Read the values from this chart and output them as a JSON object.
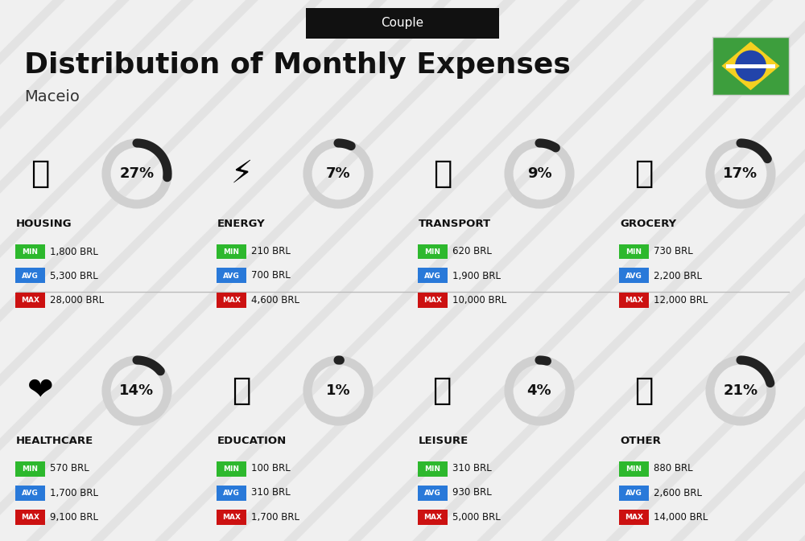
{
  "title": "Distribution of Monthly Expenses",
  "subtitle": "Maceio",
  "header_label": "Couple",
  "bg_color": "#f0f0f0",
  "categories": [
    {
      "name": "HOUSING",
      "percent": 27,
      "icon": "🏢",
      "min": "1,800 BRL",
      "avg": "5,300 BRL",
      "max": "28,000 BRL",
      "row": 0,
      "col": 0
    },
    {
      "name": "ENERGY",
      "percent": 7,
      "icon": "⚡",
      "min": "210 BRL",
      "avg": "700 BRL",
      "max": "4,600 BRL",
      "row": 0,
      "col": 1
    },
    {
      "name": "TRANSPORT",
      "percent": 9,
      "icon": "🚌",
      "min": "620 BRL",
      "avg": "1,900 BRL",
      "max": "10,000 BRL",
      "row": 0,
      "col": 2
    },
    {
      "name": "GROCERY",
      "percent": 17,
      "icon": "🛒",
      "min": "730 BRL",
      "avg": "2,200 BRL",
      "max": "12,000 BRL",
      "row": 0,
      "col": 3
    },
    {
      "name": "HEALTHCARE",
      "percent": 14,
      "icon": "❤️",
      "min": "570 BRL",
      "avg": "1,700 BRL",
      "max": "9,100 BRL",
      "row": 1,
      "col": 0
    },
    {
      "name": "EDUCATION",
      "percent": 1,
      "icon": "🎓",
      "min": "100 BRL",
      "avg": "310 BRL",
      "max": "1,700 BRL",
      "row": 1,
      "col": 1
    },
    {
      "name": "LEISURE",
      "percent": 4,
      "icon": "🛍️",
      "min": "310 BRL",
      "avg": "930 BRL",
      "max": "5,000 BRL",
      "row": 1,
      "col": 2
    },
    {
      "name": "OTHER",
      "percent": 21,
      "icon": "👜",
      "min": "880 BRL",
      "avg": "2,600 BRL",
      "max": "14,000 BRL",
      "row": 1,
      "col": 3
    }
  ],
  "color_min": "#2db82d",
  "color_avg": "#2979d9",
  "color_max": "#cc1111",
  "arc_color": "#222222",
  "arc_bg": "#d0d0d0"
}
